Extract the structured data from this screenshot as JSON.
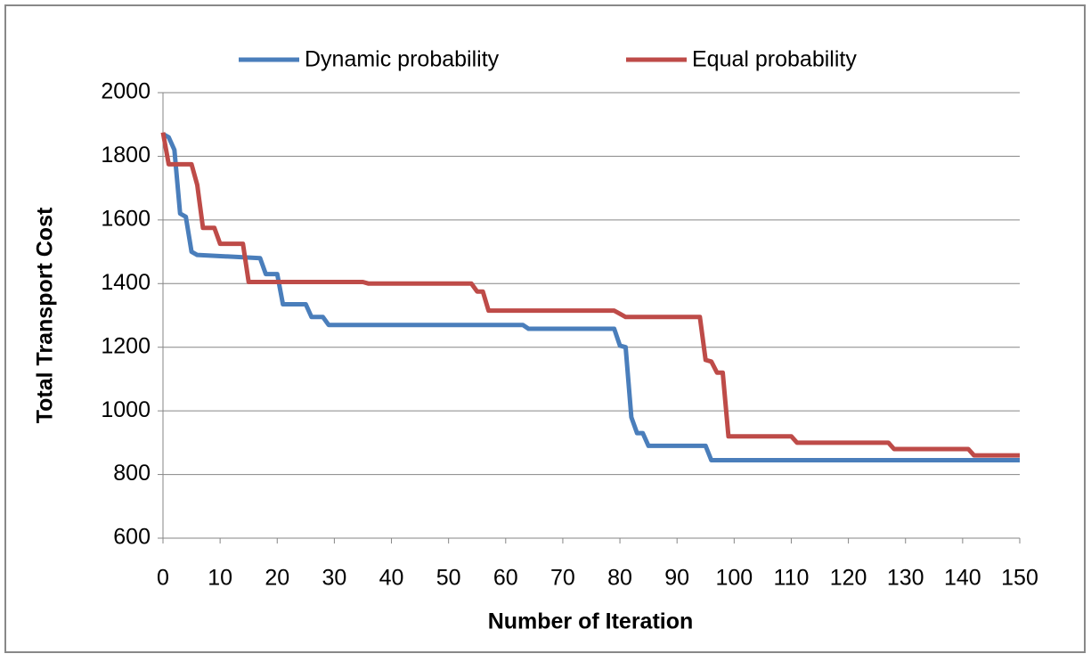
{
  "chart_data": {
    "type": "line",
    "x_label": "Number of Iteration",
    "y_label": "Total Transport  Cost",
    "xlim": [
      0,
      150
    ],
    "xticks": [
      0,
      10,
      20,
      30,
      40,
      50,
      60,
      70,
      80,
      90,
      100,
      110,
      120,
      130,
      140,
      150
    ],
    "ylim": [
      600,
      2000
    ],
    "yticks": [
      600,
      800,
      1000,
      1200,
      1400,
      1600,
      1800,
      2000
    ],
    "grid": true,
    "legend": "top",
    "series": [
      {
        "name": "Dynamic probability",
        "color": "#4a7ebb",
        "x": [
          0,
          1,
          2,
          3,
          4,
          5,
          6,
          17,
          18,
          20,
          21,
          25,
          26,
          28,
          29,
          63,
          64,
          79,
          80,
          81,
          82,
          83,
          84,
          85,
          95,
          96,
          150
        ],
        "values": [
          1870,
          1860,
          1820,
          1620,
          1610,
          1500,
          1490,
          1480,
          1430,
          1430,
          1335,
          1335,
          1295,
          1295,
          1270,
          1270,
          1258,
          1258,
          1205,
          1200,
          980,
          930,
          930,
          890,
          890,
          845,
          845
        ]
      },
      {
        "name": "Equal probability",
        "color": "#be4b48",
        "x": [
          0,
          1,
          5,
          6,
          7,
          9,
          10,
          14,
          15,
          35,
          36,
          54,
          55,
          56,
          57,
          79,
          80,
          81,
          94,
          95,
          96,
          97,
          98,
          99,
          110,
          111,
          127,
          128,
          141,
          142,
          150
        ],
        "values": [
          1875,
          1775,
          1775,
          1710,
          1575,
          1575,
          1525,
          1525,
          1405,
          1405,
          1400,
          1400,
          1375,
          1375,
          1315,
          1315,
          1305,
          1295,
          1295,
          1160,
          1155,
          1120,
          1120,
          920,
          920,
          900,
          900,
          880,
          880,
          860,
          860
        ]
      }
    ]
  }
}
